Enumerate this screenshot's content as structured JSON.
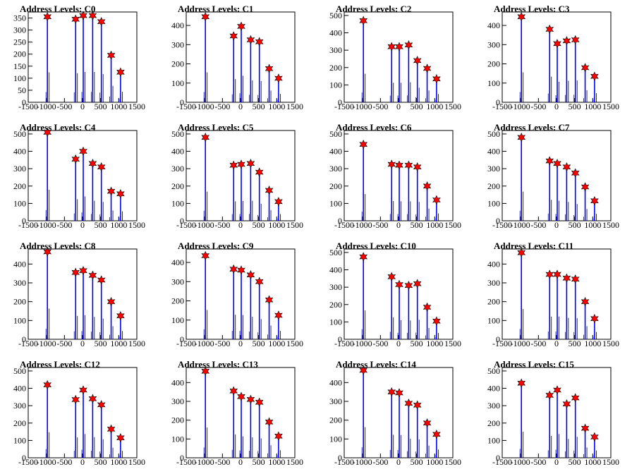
{
  "chart_data": [
    {
      "type": "bar",
      "title": "Address Levels: C0",
      "xlim": [
        -1500,
        1500
      ],
      "ylim": [
        0,
        375
      ],
      "yticks": [
        0,
        50,
        100,
        150,
        200,
        250,
        300,
        350
      ],
      "xticks": [
        -1500,
        -1000,
        -500,
        0,
        500,
        1000,
        1500
      ],
      "peaks": [
        {
          "x": -970,
          "y": 355
        },
        {
          "x": -190,
          "y": 345
        },
        {
          "x": 20,
          "y": 360
        },
        {
          "x": 280,
          "y": 360
        },
        {
          "x": 520,
          "y": 335
        },
        {
          "x": 790,
          "y": 195
        },
        {
          "x": 1050,
          "y": 125
        }
      ]
    },
    {
      "type": "bar",
      "title": "Address Levels: C1",
      "xlim": [
        -1500,
        1500
      ],
      "ylim": [
        0,
        470
      ],
      "yticks": [
        0,
        100,
        200,
        300,
        400
      ],
      "xticks": [
        -1500,
        -1000,
        -500,
        0,
        500,
        1000,
        1500
      ],
      "peaks": [
        {
          "x": -970,
          "y": 445
        },
        {
          "x": -190,
          "y": 345
        },
        {
          "x": 20,
          "y": 395
        },
        {
          "x": 280,
          "y": 325
        },
        {
          "x": 520,
          "y": 315
        },
        {
          "x": 790,
          "y": 175
        },
        {
          "x": 1050,
          "y": 125
        }
      ]
    },
    {
      "type": "bar",
      "title": "Address Levels: C2",
      "xlim": [
        -1500,
        1500
      ],
      "ylim": [
        0,
        520
      ],
      "yticks": [
        0,
        100,
        200,
        300,
        400,
        500
      ],
      "xticks": [
        -1500,
        -1000,
        -500,
        0,
        500,
        1000,
        1500
      ],
      "peaks": [
        {
          "x": -970,
          "y": 470
        },
        {
          "x": -190,
          "y": 320
        },
        {
          "x": 20,
          "y": 320
        },
        {
          "x": 280,
          "y": 330
        },
        {
          "x": 520,
          "y": 240
        },
        {
          "x": 790,
          "y": 195
        },
        {
          "x": 1050,
          "y": 135
        }
      ]
    },
    {
      "type": "bar",
      "title": "Address Levels: C3",
      "xlim": [
        -1500,
        1500
      ],
      "ylim": [
        0,
        470
      ],
      "yticks": [
        0,
        100,
        200,
        300,
        400
      ],
      "xticks": [
        -1500,
        -1000,
        -500,
        0,
        500,
        1000,
        1500
      ],
      "peaks": [
        {
          "x": -970,
          "y": 445
        },
        {
          "x": -190,
          "y": 380
        },
        {
          "x": 20,
          "y": 305
        },
        {
          "x": 280,
          "y": 320
        },
        {
          "x": 520,
          "y": 325
        },
        {
          "x": 790,
          "y": 180
        },
        {
          "x": 1050,
          "y": 135
        }
      ]
    },
    {
      "type": "bar",
      "title": "Address Levels: C4",
      "xlim": [
        -1500,
        1500
      ],
      "ylim": [
        0,
        520
      ],
      "yticks": [
        0,
        100,
        200,
        300,
        400,
        500
      ],
      "xticks": [
        -1500,
        -1000,
        -500,
        0,
        500,
        1000,
        1500
      ],
      "peaks": [
        {
          "x": -970,
          "y": 510
        },
        {
          "x": -190,
          "y": 355
        },
        {
          "x": 20,
          "y": 400
        },
        {
          "x": 280,
          "y": 330
        },
        {
          "x": 520,
          "y": 310
        },
        {
          "x": 790,
          "y": 170
        },
        {
          "x": 1050,
          "y": 155
        }
      ]
    },
    {
      "type": "bar",
      "title": "Address Levels: C5",
      "xlim": [
        -1500,
        1500
      ],
      "ylim": [
        0,
        520
      ],
      "yticks": [
        0,
        100,
        200,
        300,
        400,
        500
      ],
      "xticks": [
        -1500,
        -1000,
        -500,
        0,
        500,
        1000,
        1500
      ],
      "peaks": [
        {
          "x": -970,
          "y": 480
        },
        {
          "x": -190,
          "y": 320
        },
        {
          "x": 20,
          "y": 325
        },
        {
          "x": 280,
          "y": 330
        },
        {
          "x": 520,
          "y": 280
        },
        {
          "x": 790,
          "y": 175
        },
        {
          "x": 1050,
          "y": 110
        }
      ]
    },
    {
      "type": "bar",
      "title": "Address Levels: C6",
      "xlim": [
        -1500,
        1500
      ],
      "ylim": [
        0,
        520
      ],
      "yticks": [
        0,
        100,
        200,
        300,
        400,
        500
      ],
      "xticks": [
        -1500,
        -1000,
        -500,
        0,
        500,
        1000,
        1500
      ],
      "peaks": [
        {
          "x": -970,
          "y": 440
        },
        {
          "x": -190,
          "y": 325
        },
        {
          "x": 20,
          "y": 320
        },
        {
          "x": 280,
          "y": 320
        },
        {
          "x": 520,
          "y": 310
        },
        {
          "x": 790,
          "y": 200
        },
        {
          "x": 1050,
          "y": 120
        }
      ]
    },
    {
      "type": "bar",
      "title": "Address Levels: C7",
      "xlim": [
        -1500,
        1500
      ],
      "ylim": [
        0,
        520
      ],
      "yticks": [
        0,
        100,
        200,
        300,
        400,
        500
      ],
      "xticks": [
        -1500,
        -1000,
        -500,
        0,
        500,
        1000,
        1500
      ],
      "peaks": [
        {
          "x": -970,
          "y": 480
        },
        {
          "x": -190,
          "y": 345
        },
        {
          "x": 20,
          "y": 330
        },
        {
          "x": 280,
          "y": 310
        },
        {
          "x": 520,
          "y": 275
        },
        {
          "x": 790,
          "y": 195
        },
        {
          "x": 1050,
          "y": 115
        }
      ]
    },
    {
      "type": "bar",
      "title": "Address Levels: C8",
      "xlim": [
        -1500,
        1500
      ],
      "ylim": [
        0,
        480
      ],
      "yticks": [
        0,
        100,
        200,
        300,
        400
      ],
      "xticks": [
        -1500,
        -1000,
        -500,
        0,
        500,
        1000,
        1500
      ],
      "peaks": [
        {
          "x": -970,
          "y": 465
        },
        {
          "x": -190,
          "y": 355
        },
        {
          "x": 20,
          "y": 365
        },
        {
          "x": 280,
          "y": 340
        },
        {
          "x": 520,
          "y": 315
        },
        {
          "x": 790,
          "y": 200
        },
        {
          "x": 1050,
          "y": 125
        }
      ]
    },
    {
      "type": "bar",
      "title": "Address Levels: C9",
      "xlim": [
        -1500,
        1500
      ],
      "ylim": [
        0,
        470
      ],
      "yticks": [
        0,
        100,
        200,
        300,
        400
      ],
      "xticks": [
        -1500,
        -1000,
        -500,
        0,
        500,
        1000,
        1500
      ],
      "peaks": [
        {
          "x": -970,
          "y": 435
        },
        {
          "x": -190,
          "y": 365
        },
        {
          "x": 20,
          "y": 360
        },
        {
          "x": 280,
          "y": 335
        },
        {
          "x": 520,
          "y": 300
        },
        {
          "x": 790,
          "y": 205
        },
        {
          "x": 1050,
          "y": 125
        }
      ]
    },
    {
      "type": "bar",
      "title": "Address Levels: C10",
      "xlim": [
        -1500,
        1500
      ],
      "ylim": [
        0,
        520
      ],
      "yticks": [
        0,
        100,
        200,
        300,
        400,
        500
      ],
      "xticks": [
        -1500,
        -1000,
        -500,
        0,
        500,
        1000,
        1500
      ],
      "peaks": [
        {
          "x": -970,
          "y": 475
        },
        {
          "x": -190,
          "y": 360
        },
        {
          "x": 20,
          "y": 315
        },
        {
          "x": 280,
          "y": 310
        },
        {
          "x": 520,
          "y": 320
        },
        {
          "x": 790,
          "y": 185
        },
        {
          "x": 1050,
          "y": 105
        }
      ]
    },
    {
      "type": "bar",
      "title": "Address Levels: C11",
      "xlim": [
        -1500,
        1500
      ],
      "ylim": [
        0,
        480
      ],
      "yticks": [
        0,
        100,
        200,
        300,
        400
      ],
      "xticks": [
        -1500,
        -1000,
        -500,
        0,
        500,
        1000,
        1500
      ],
      "peaks": [
        {
          "x": -970,
          "y": 460
        },
        {
          "x": -190,
          "y": 345
        },
        {
          "x": 20,
          "y": 345
        },
        {
          "x": 280,
          "y": 325
        },
        {
          "x": 520,
          "y": 320
        },
        {
          "x": 790,
          "y": 200
        },
        {
          "x": 1050,
          "y": 110
        }
      ]
    },
    {
      "type": "bar",
      "title": "Address Levels: C12",
      "xlim": [
        -1500,
        1500
      ],
      "ylim": [
        0,
        520
      ],
      "yticks": [
        0,
        100,
        200,
        300,
        400,
        500
      ],
      "xticks": [
        -1500,
        -1000,
        -500,
        0,
        500,
        1000,
        1500
      ],
      "peaks": [
        {
          "x": -970,
          "y": 420
        },
        {
          "x": -190,
          "y": 335
        },
        {
          "x": 20,
          "y": 390
        },
        {
          "x": 280,
          "y": 340
        },
        {
          "x": 520,
          "y": 305
        },
        {
          "x": 790,
          "y": 165
        },
        {
          "x": 1050,
          "y": 115
        }
      ]
    },
    {
      "type": "bar",
      "title": "Address Levels: C13",
      "xlim": [
        -1500,
        1500
      ],
      "ylim": [
        0,
        480
      ],
      "yticks": [
        0,
        100,
        200,
        300,
        400
      ],
      "xticks": [
        -1500,
        -1000,
        -500,
        0,
        500,
        1000,
        1500
      ],
      "peaks": [
        {
          "x": -970,
          "y": 460
        },
        {
          "x": -190,
          "y": 355
        },
        {
          "x": 20,
          "y": 325
        },
        {
          "x": 280,
          "y": 310
        },
        {
          "x": 520,
          "y": 295
        },
        {
          "x": 790,
          "y": 190
        },
        {
          "x": 1050,
          "y": 115
        }
      ]
    },
    {
      "type": "bar",
      "title": "Address Levels: C14",
      "xlim": [
        -1500,
        1500
      ],
      "ylim": [
        0,
        480
      ],
      "yticks": [
        0,
        100,
        200,
        300,
        400
      ],
      "xticks": [
        -1500,
        -1000,
        -500,
        0,
        500,
        1000,
        1500
      ],
      "peaks": [
        {
          "x": -970,
          "y": 465
        },
        {
          "x": -190,
          "y": 350
        },
        {
          "x": 20,
          "y": 345
        },
        {
          "x": 280,
          "y": 290
        },
        {
          "x": 520,
          "y": 280
        },
        {
          "x": 790,
          "y": 185
        },
        {
          "x": 1050,
          "y": 125
        }
      ]
    },
    {
      "type": "bar",
      "title": "Address Levels: C15",
      "xlim": [
        -1500,
        1500
      ],
      "ylim": [
        0,
        520
      ],
      "yticks": [
        0,
        100,
        200,
        300,
        400,
        500
      ],
      "xticks": [
        -1500,
        -1000,
        -500,
        0,
        500,
        1000,
        1500
      ],
      "peaks": [
        {
          "x": -970,
          "y": 430
        },
        {
          "x": -190,
          "y": 360
        },
        {
          "x": 20,
          "y": 390
        },
        {
          "x": 280,
          "y": 310
        },
        {
          "x": 520,
          "y": 345
        },
        {
          "x": 790,
          "y": 170
        },
        {
          "x": 1050,
          "y": 120
        }
      ]
    }
  ],
  "colors": {
    "histogram": "#0000ff",
    "secondary": "#000000",
    "marker": "#ff0000",
    "marker_outline": "#000000"
  }
}
